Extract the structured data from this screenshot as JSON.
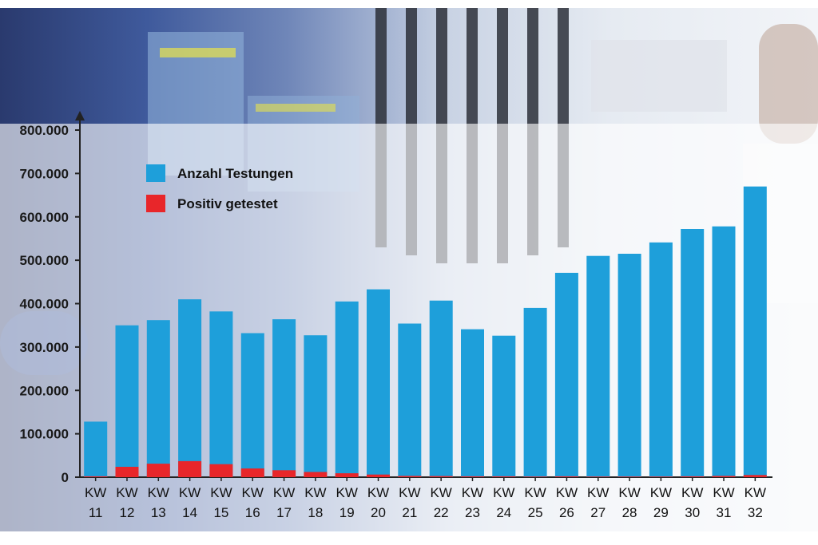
{
  "chart_data": {
    "type": "bar",
    "stacked": false,
    "categories": [
      [
        "KW",
        "11"
      ],
      [
        "KW",
        "12"
      ],
      [
        "KW",
        "13"
      ],
      [
        "KW",
        "14"
      ],
      [
        "KW",
        "15"
      ],
      [
        "KW",
        "16"
      ],
      [
        "KW",
        "17"
      ],
      [
        "KW",
        "18"
      ],
      [
        "KW",
        "19"
      ],
      [
        "KW",
        "20"
      ],
      [
        "KW",
        "21"
      ],
      [
        "KW",
        "22"
      ],
      [
        "KW",
        "23"
      ],
      [
        "KW",
        "24"
      ],
      [
        "KW",
        "25"
      ],
      [
        "KW",
        "26"
      ],
      [
        "KW",
        "27"
      ],
      [
        "KW",
        "28"
      ],
      [
        "KW",
        "29"
      ],
      [
        "KW",
        "30"
      ],
      [
        "KW",
        "31"
      ],
      [
        "KW",
        "32"
      ]
    ],
    "series": [
      {
        "name": "Anzahl Testungen",
        "color": "#1e9fda",
        "values": [
          128000,
          350000,
          362000,
          410000,
          382000,
          332000,
          364000,
          327000,
          405000,
          433000,
          354000,
          407000,
          341000,
          326000,
          390000,
          471000,
          510000,
          515000,
          541000,
          572000,
          578000,
          670000
        ]
      },
      {
        "name": "Positiv getestet",
        "color": "#e8262a",
        "values": [
          2000,
          24000,
          31000,
          37000,
          30000,
          20000,
          16000,
          12000,
          9000,
          6000,
          3000,
          2500,
          2000,
          2000,
          1500,
          2000,
          1500,
          1500,
          1500,
          2000,
          3000,
          5000
        ]
      }
    ],
    "yticks": [
      "0",
      "100.000",
      "200.000",
      "300.000",
      "400.000",
      "500.000",
      "600.000",
      "700.000",
      "800.000"
    ],
    "ylim": [
      0,
      800000
    ],
    "grid": false,
    "legend_position": "top-left"
  },
  "colors": {
    "axis": "#222222",
    "tick_text": "#1a1a1a"
  }
}
